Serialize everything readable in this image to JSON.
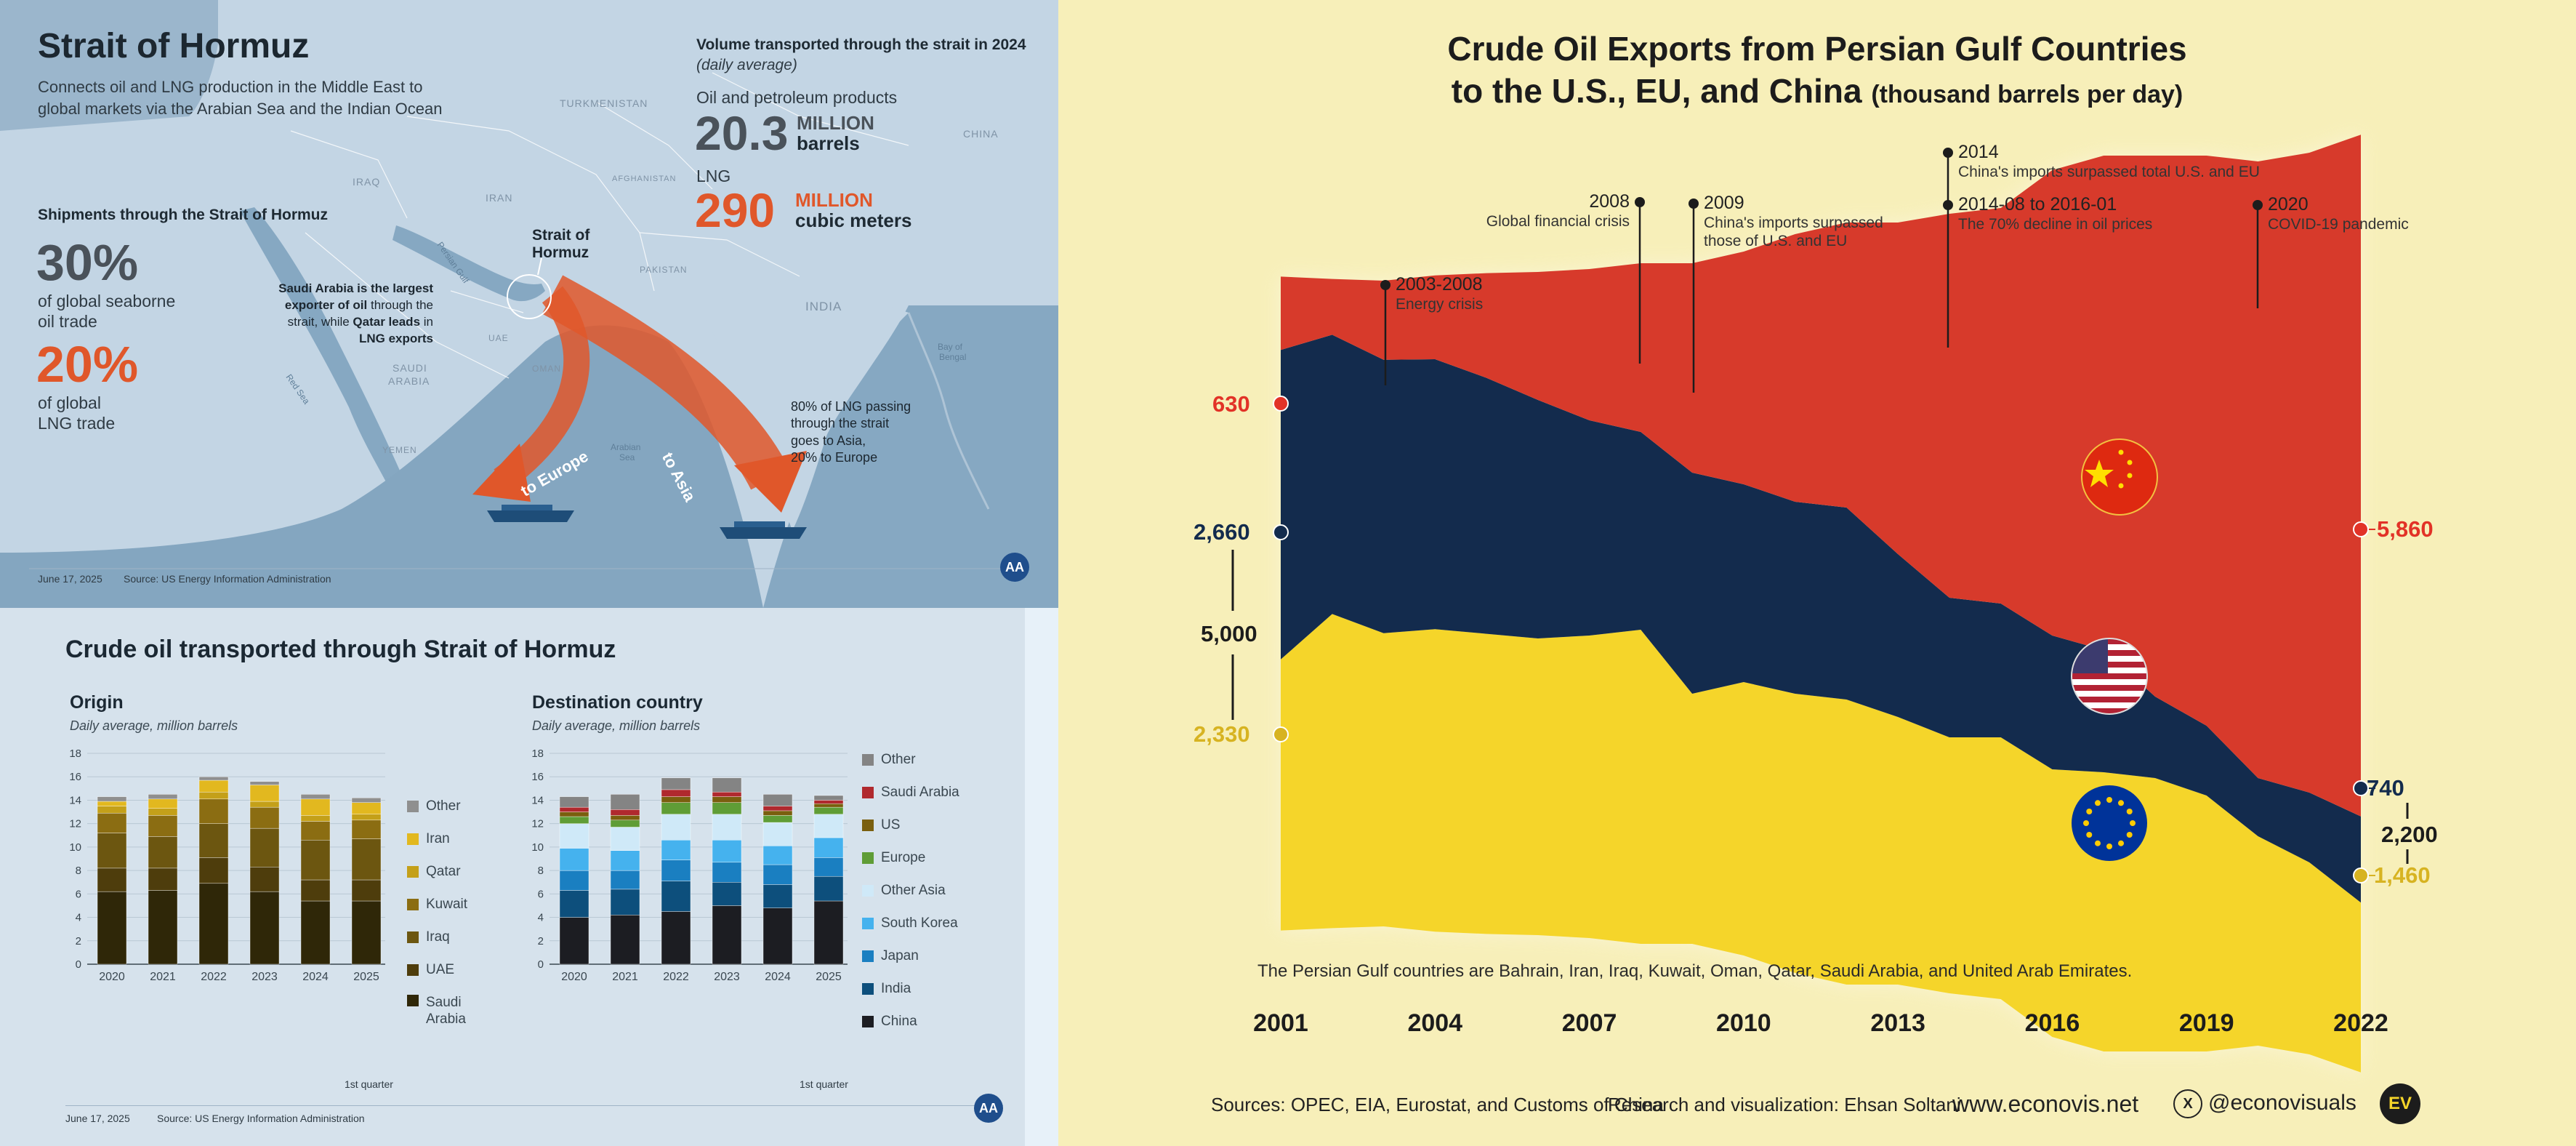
{
  "hormuz_map": {
    "title": "Strait of Hormuz",
    "subtitle_line1": "Connects oil and LNG production in the Middle East to",
    "subtitle_line2": "global markets via the Arabian Sea and the Indian Ocean",
    "volume_header": "Volume transported through the strait in 2024",
    "volume_sub": "(daily average)",
    "oil_label": "Oil and petroleum products",
    "oil_value": "20.3",
    "oil_unit1": "MILLION",
    "oil_unit2": "barrels",
    "lng_label": "LNG",
    "lng_value": "290",
    "lng_unit1": "MILLION",
    "lng_unit2": "cubic meters",
    "shipments_header": "Shipments through the Strait of Hormuz",
    "oil_share": "30%",
    "oil_share_text1": "of global seaborne",
    "oil_share_text2": "oil trade",
    "lng_share": "20%",
    "lng_share_text1": "of global",
    "lng_share_text2": "LNG trade",
    "saudi_note": {
      "l1a": "Saudi Arabia is the largest",
      "l2a": "exporter of oil",
      "l2b": " through the",
      "l3a": "strait, while ",
      "l3b": "Qatar leads",
      "l3c": " in",
      "l4a": "LNG exports"
    },
    "strait_label1": "Strait of",
    "strait_label2": "Hormuz",
    "lng_note1": "80% of LNG passing",
    "lng_note2": "through the strait",
    "lng_note3": "goes to Asia,",
    "lng_note4": "20% to Europe",
    "arrow_europe": "to Europe",
    "arrow_asia": "to Asia",
    "countries": {
      "turkmenistan": "TURKMENISTAN",
      "iraq": "IRAQ",
      "iran": "IRAN",
      "afghanistan": "AFGHANISTAN",
      "china": "CHINA",
      "pakistan": "PAKISTAN",
      "india": "INDIA",
      "saudi1": "SAUDI",
      "saudi2": "ARABIA",
      "uae": "UAE",
      "oman": "OMAN",
      "yemen": "YEMEN",
      "red_sea": "Red Sea",
      "persian_gulf": "Persian Gulf",
      "arabian_sea1": "Arabian",
      "arabian_sea2": "Sea",
      "bay1": "Bay of",
      "bay2": "Bengal"
    },
    "date": "June 17, 2025",
    "source": "Source: US Energy Information Administration",
    "logo_text": "AA"
  },
  "crude_panel": {
    "title": "Crude oil transported through Strait of Hormuz",
    "date": "June 17, 2025",
    "source": "Source: US Energy Information Administration",
    "logo_text": "AA",
    "origin_title": "Origin",
    "origin_subtitle": "Daily average, million barrels",
    "dest_title": "Destination country",
    "dest_subtitle": "Daily average, million barrels",
    "quarter_note": "1st quarter"
  },
  "gulf_chart": {
    "title_line1": "Crude Oil Exports from Persian Gulf Countries",
    "title_line2": "to the U.S., EU, and China",
    "title_units": "(thousand barrels per day)",
    "footnote": "The Persian Gulf countries are Bahrain, Iran, Iraq, Kuwait, Oman, Qatar, Saudi Arabia, and United Arab Emirates.",
    "sources": "Sources: OPEC, EIA, Eurostat, and Customs of China",
    "research": "Research and visualization: Ehsan Soltani",
    "website": "www.econovis.net",
    "handle": "@econovisuals",
    "x_glyph": "X",
    "logo_text": "EV",
    "left_labels": {
      "china": "630",
      "us": "2,660",
      "total": "5,000",
      "eu": "2,330"
    },
    "right_labels": {
      "china": "5,860",
      "us": "740",
      "total": "2,200",
      "eu": "1,460"
    },
    "events": [
      {
        "year": "2003-2008",
        "text": "Energy crisis"
      },
      {
        "year": "2008",
        "text": "Global financial crisis"
      },
      {
        "year": "2009",
        "text": "China's imports surpassed",
        "text2": "those of U.S. and EU"
      },
      {
        "year": "2014",
        "text": "China's imports surpassed total U.S. and EU"
      },
      {
        "year": "2014-08 to 2016-01",
        "text": "The 70% decline in oil prices"
      },
      {
        "year": "2020",
        "text": "COVID-19 pandemic"
      }
    ]
  },
  "colors": {
    "origin": [
      "#2f2708",
      "#4e3d0c",
      "#6c5610",
      "#8b6d12",
      "#c4a019",
      "#e2b81f",
      "#8f8f8f"
    ],
    "dest": [
      "#1c1d22",
      "#0d4f7c",
      "#1a7fc1",
      "#45b2ee",
      "#cfe9f8",
      "#5f9d36",
      "#7a5f0e",
      "#b0292e",
      "#848484"
    ],
    "gulf_red": "#d73a2b",
    "gulf_navy": "#132b4d",
    "gulf_yellow": "#f5d52a",
    "orange": "#e0572a"
  },
  "chart_data": [
    {
      "type": "bar",
      "title": "Origin",
      "subtitle": "Daily average, million barrels",
      "stacked": true,
      "categories": [
        "2020",
        "2021",
        "2022",
        "2023",
        "2024",
        "2025"
      ],
      "ylim": [
        0,
        18
      ],
      "yticks": [
        "0",
        "2",
        "4",
        "6",
        "8",
        "10",
        "12",
        "14",
        "16",
        "18"
      ],
      "series": [
        {
          "name": "Saudi Arabia",
          "values": [
            6.2,
            6.3,
            6.9,
            6.2,
            5.4,
            5.4
          ]
        },
        {
          "name": "UAE",
          "values": [
            2.0,
            1.9,
            2.2,
            2.1,
            1.8,
            1.8
          ]
        },
        {
          "name": "Iraq",
          "values": [
            3.0,
            2.7,
            2.9,
            3.3,
            3.4,
            3.5
          ]
        },
        {
          "name": "Kuwait",
          "values": [
            1.7,
            1.8,
            2.1,
            1.8,
            1.6,
            1.6
          ]
        },
        {
          "name": "Qatar",
          "values": [
            0.6,
            0.6,
            0.6,
            0.5,
            0.5,
            0.5
          ]
        },
        {
          "name": "Iran",
          "values": [
            0.4,
            0.8,
            1.0,
            1.4,
            1.4,
            1.0
          ]
        },
        {
          "name": "Other",
          "values": [
            0.4,
            0.4,
            0.3,
            0.3,
            0.4,
            0.4
          ]
        }
      ]
    },
    {
      "type": "bar",
      "title": "Destination country",
      "subtitle": "Daily average, million barrels",
      "stacked": true,
      "categories": [
        "2020",
        "2021",
        "2022",
        "2023",
        "2024",
        "2025"
      ],
      "ylim": [
        0,
        18
      ],
      "yticks": [
        "0",
        "2",
        "4",
        "6",
        "8",
        "10",
        "12",
        "14",
        "16",
        "18"
      ],
      "series": [
        {
          "name": "China",
          "values": [
            4.0,
            4.2,
            4.5,
            5.0,
            4.8,
            5.4
          ]
        },
        {
          "name": "India",
          "values": [
            2.3,
            2.2,
            2.6,
            2.0,
            2.0,
            2.1
          ]
        },
        {
          "name": "Japan",
          "values": [
            1.7,
            1.6,
            1.8,
            1.7,
            1.7,
            1.6
          ]
        },
        {
          "name": "South Korea",
          "values": [
            1.9,
            1.7,
            1.7,
            1.9,
            1.6,
            1.7
          ]
        },
        {
          "name": "Other Asia",
          "values": [
            2.1,
            2.0,
            2.2,
            2.2,
            2.0,
            2.0
          ]
        },
        {
          "name": "Europe",
          "values": [
            0.6,
            0.6,
            1.0,
            1.0,
            0.6,
            0.6
          ]
        },
        {
          "name": "US",
          "values": [
            0.4,
            0.4,
            0.5,
            0.5,
            0.4,
            0.3
          ]
        },
        {
          "name": "Saudi Arabia",
          "values": [
            0.4,
            0.5,
            0.6,
            0.4,
            0.4,
            0.3
          ]
        },
        {
          "name": "Other",
          "values": [
            0.9,
            1.3,
            1.0,
            1.2,
            1.0,
            0.4
          ]
        }
      ]
    },
    {
      "type": "area",
      "stacked": true,
      "title": "Crude Oil Exports from Persian Gulf Countries to the U.S., EU, and China",
      "units": "thousand barrels per day",
      "x": [
        2001,
        2002,
        2003,
        2004,
        2005,
        2006,
        2007,
        2008,
        2009,
        2010,
        2011,
        2012,
        2013,
        2014,
        2015,
        2016,
        2017,
        2018,
        2019,
        2020,
        2021,
        2022
      ],
      "xticks": [
        "2001",
        "2004",
        "2007",
        "2010",
        "2013",
        "2016",
        "2019",
        "2022"
      ],
      "series": [
        {
          "name": "EU",
          "values": [
            2330,
            2700,
            2520,
            2600,
            2580,
            2550,
            2600,
            2700,
            2150,
            2350,
            2400,
            2450,
            2300,
            2200,
            2250,
            2300,
            2400,
            2350,
            2200,
            1800,
            1650,
            1460
          ]
        },
        {
          "name": "U.S.",
          "values": [
            2660,
            2400,
            2350,
            2320,
            2200,
            2050,
            1850,
            1700,
            1900,
            1700,
            1650,
            1650,
            1400,
            1200,
            1150,
            1150,
            1050,
            700,
            600,
            500,
            600,
            740
          ]
        },
        {
          "name": "China",
          "values": [
            630,
            480,
            680,
            720,
            900,
            1100,
            1300,
            1450,
            1800,
            2000,
            2300,
            2450,
            2850,
            3300,
            3400,
            4000,
            4250,
            4650,
            4900,
            5300,
            5500,
            5860
          ]
        }
      ]
    }
  ]
}
